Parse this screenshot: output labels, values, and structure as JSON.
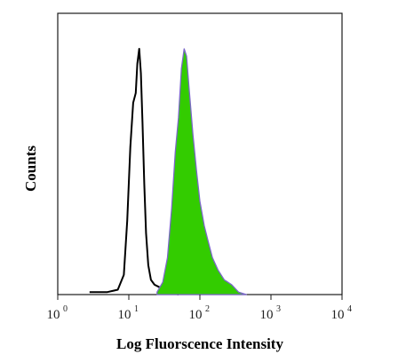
{
  "chart_data": {
    "type": "area",
    "xlabel": "Log Fluorscence Intensity",
    "ylabel": "Counts",
    "x_scale": "log",
    "xlim": [
      1,
      10000
    ],
    "ylim": [
      0,
      100
    ],
    "grid": false,
    "x_ticks": [
      {
        "base": "10",
        "exp": "0"
      },
      {
        "base": "10",
        "exp": "1"
      },
      {
        "base": "10",
        "exp": "2"
      },
      {
        "base": "10",
        "exp": "3"
      },
      {
        "base": "10",
        "exp": "4"
      }
    ],
    "series": [
      {
        "style": "outline",
        "color": "#000000",
        "x": [
          2.8,
          5.0,
          7.0,
          8.5,
          9.5,
          10.5,
          11.5,
          12.5,
          13.2,
          14.0,
          14.8,
          15.6,
          16.5,
          17.5,
          18.8,
          20.5,
          23.0,
          27.0,
          32.0,
          40.0,
          50.0
        ],
        "y": [
          1,
          1,
          2,
          8,
          30,
          60,
          78,
          82,
          94,
          100,
          90,
          70,
          45,
          25,
          12,
          6,
          4,
          3,
          2,
          1,
          0
        ]
      },
      {
        "style": "filled",
        "color": "#33cc00",
        "edge_color": "#7b68c8",
        "x": [
          25.0,
          30.0,
          35.0,
          40.0,
          45.0,
          50.0,
          55.0,
          60.0,
          65.0,
          70.0,
          80.0,
          90.0,
          100.0,
          115.0,
          130.0,
          150.0,
          180.0,
          220.0,
          280.0,
          350.0,
          450.0
        ],
        "y": [
          1,
          5,
          15,
          35,
          58,
          72,
          92,
          100,
          97,
          85,
          65,
          50,
          38,
          28,
          22,
          15,
          10,
          6,
          4,
          1,
          0
        ]
      }
    ]
  }
}
